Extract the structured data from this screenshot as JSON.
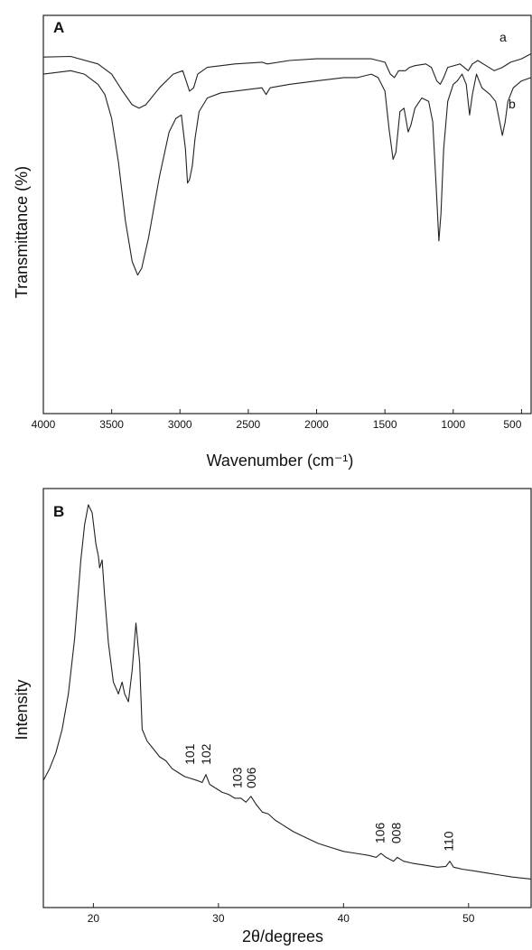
{
  "chart_data": [
    {
      "panel": "A",
      "type": "line",
      "xlabel": "Wavenumber (cm⁻¹)",
      "ylabel": "Transmittance (%)",
      "xlim": [
        4000,
        430
      ],
      "ylim": [
        0,
        100
      ],
      "x_reversed": true,
      "x_ticks": [
        4000,
        3500,
        3000,
        2500,
        2000,
        1500,
        1000,
        500
      ],
      "x_tick_labels": [
        "4000",
        "3500",
        "3000",
        "2500",
        "2000",
        "1500",
        "1000",
        "500"
      ],
      "series": [
        {
          "name": "a",
          "points": [
            [
              4000,
              93
            ],
            [
              3800,
              93.2
            ],
            [
              3600,
              91
            ],
            [
              3500,
              88
            ],
            [
              3420,
              83
            ],
            [
              3350,
              79
            ],
            [
              3300,
              78
            ],
            [
              3250,
              79
            ],
            [
              3150,
              84
            ],
            [
              3050,
              88
            ],
            [
              2980,
              89
            ],
            [
              2955,
              86
            ],
            [
              2930,
              83
            ],
            [
              2900,
              84
            ],
            [
              2870,
              88
            ],
            [
              2800,
              90
            ],
            [
              2600,
              91
            ],
            [
              2400,
              91.5
            ],
            [
              2360,
              91
            ],
            [
              2200,
              92
            ],
            [
              2000,
              92.5
            ],
            [
              1800,
              92.5
            ],
            [
              1600,
              92.5
            ],
            [
              1500,
              91.5
            ],
            [
              1460,
              88
            ],
            [
              1430,
              87
            ],
            [
              1400,
              89
            ],
            [
              1350,
              89
            ],
            [
              1320,
              90
            ],
            [
              1280,
              90.5
            ],
            [
              1200,
              91
            ],
            [
              1160,
              90
            ],
            [
              1120,
              86
            ],
            [
              1095,
              85
            ],
            [
              1070,
              87
            ],
            [
              1040,
              90
            ],
            [
              950,
              91
            ],
            [
              890,
              89
            ],
            [
              860,
              91
            ],
            [
              820,
              92
            ],
            [
              780,
              91
            ],
            [
              700,
              89
            ],
            [
              640,
              90
            ],
            [
              580,
              91.5
            ],
            [
              500,
              92.5
            ],
            [
              430,
              94
            ]
          ]
        },
        {
          "name": "b",
          "points": [
            [
              4000,
              88
            ],
            [
              3900,
              88.5
            ],
            [
              3800,
              89
            ],
            [
              3700,
              88
            ],
            [
              3600,
              85
            ],
            [
              3550,
              82
            ],
            [
              3500,
              75
            ],
            [
              3450,
              62
            ],
            [
              3400,
              45
            ],
            [
              3350,
              33
            ],
            [
              3310,
              29
            ],
            [
              3280,
              31
            ],
            [
              3230,
              40
            ],
            [
              3150,
              58
            ],
            [
              3080,
              71
            ],
            [
              3030,
              75
            ],
            [
              2990,
              76
            ],
            [
              2960,
              66
            ],
            [
              2945,
              56
            ],
            [
              2930,
              57
            ],
            [
              2910,
              61
            ],
            [
              2890,
              69
            ],
            [
              2860,
              77
            ],
            [
              2800,
              81
            ],
            [
              2700,
              82.5
            ],
            [
              2500,
              83.5
            ],
            [
              2400,
              84
            ],
            [
              2370,
              82
            ],
            [
              2340,
              84
            ],
            [
              2200,
              85
            ],
            [
              2000,
              86
            ],
            [
              1800,
              87
            ],
            [
              1700,
              87
            ],
            [
              1600,
              88
            ],
            [
              1550,
              87
            ],
            [
              1500,
              83
            ],
            [
              1470,
              72
            ],
            [
              1440,
              63
            ],
            [
              1420,
              65
            ],
            [
              1390,
              77
            ],
            [
              1360,
              78
            ],
            [
              1330,
              71
            ],
            [
              1310,
              73
            ],
            [
              1280,
              78
            ],
            [
              1230,
              81
            ],
            [
              1180,
              80
            ],
            [
              1150,
              74
            ],
            [
              1125,
              55
            ],
            [
              1105,
              39
            ],
            [
              1090,
              47
            ],
            [
              1070,
              66
            ],
            [
              1040,
              80
            ],
            [
              1000,
              85
            ],
            [
              970,
              86
            ],
            [
              935,
              88
            ],
            [
              905,
              85
            ],
            [
              880,
              76
            ],
            [
              860,
              82
            ],
            [
              830,
              88
            ],
            [
              790,
              84
            ],
            [
              730,
              82
            ],
            [
              690,
              80
            ],
            [
              660,
              74
            ],
            [
              640,
              70
            ],
            [
              620,
              74
            ],
            [
              600,
              80
            ],
            [
              560,
              84
            ],
            [
              500,
              86
            ],
            [
              430,
              87
            ]
          ]
        }
      ]
    },
    {
      "panel": "B",
      "type": "line",
      "xlabel": "2θ/degrees",
      "ylabel": "Intensity",
      "xlim": [
        16,
        55
      ],
      "ylim": [
        0,
        100
      ],
      "x_ticks": [
        20,
        30,
        40,
        50
      ],
      "x_tick_labels": [
        "20",
        "30",
        "40",
        "50"
      ],
      "series": [
        {
          "points": [
            [
              16.0,
              28
            ],
            [
              16.5,
              31
            ],
            [
              17.0,
              35
            ],
            [
              17.5,
              41
            ],
            [
              18.0,
              50
            ],
            [
              18.5,
              64
            ],
            [
              19.0,
              84
            ],
            [
              19.3,
              93
            ],
            [
              19.6,
              98
            ],
            [
              19.9,
              96
            ],
            [
              20.2,
              88
            ],
            [
              20.4,
              85
            ],
            [
              20.5,
              82
            ],
            [
              20.7,
              84
            ],
            [
              20.9,
              75
            ],
            [
              21.2,
              63
            ],
            [
              21.6,
              53
            ],
            [
              22.0,
              50
            ],
            [
              22.3,
              53
            ],
            [
              22.5,
              50
            ],
            [
              22.8,
              48
            ],
            [
              23.1,
              56
            ],
            [
              23.4,
              68
            ],
            [
              23.7,
              58
            ],
            [
              23.9,
              41
            ],
            [
              24.3,
              38
            ],
            [
              24.8,
              36
            ],
            [
              25.3,
              34
            ],
            [
              25.8,
              33
            ],
            [
              26.3,
              31
            ],
            [
              26.8,
              30
            ],
            [
              27.3,
              29
            ],
            [
              27.8,
              28.5
            ],
            [
              28.3,
              28
            ],
            [
              28.7,
              27.5
            ],
            [
              29.0,
              29.5
            ],
            [
              29.3,
              27
            ],
            [
              29.8,
              26
            ],
            [
              30.3,
              25
            ],
            [
              30.8,
              24.5
            ],
            [
              31.3,
              23.5
            ],
            [
              31.8,
              23.5
            ],
            [
              32.2,
              22.5
            ],
            [
              32.6,
              24
            ],
            [
              33.0,
              22
            ],
            [
              33.5,
              20
            ],
            [
              34.0,
              19.5
            ],
            [
              34.5,
              18
            ],
            [
              35.0,
              17
            ],
            [
              36.0,
              15
            ],
            [
              37.0,
              13.5
            ],
            [
              38.0,
              12
            ],
            [
              39.0,
              11
            ],
            [
              40.0,
              10
            ],
            [
              41.0,
              9.5
            ],
            [
              42.0,
              9
            ],
            [
              42.6,
              8.5
            ],
            [
              43.0,
              9.5
            ],
            [
              43.4,
              8.5
            ],
            [
              44.0,
              7.5
            ],
            [
              44.3,
              8.5
            ],
            [
              44.8,
              7.5
            ],
            [
              45.5,
              7
            ],
            [
              46.5,
              6.5
            ],
            [
              47.5,
              6
            ],
            [
              48.2,
              6.2
            ],
            [
              48.5,
              7.5
            ],
            [
              48.8,
              6
            ],
            [
              49.5,
              5.5
            ],
            [
              50.5,
              5
            ],
            [
              51.5,
              4.5
            ],
            [
              52.5,
              4
            ],
            [
              53.5,
              3.5
            ],
            [
              55.0,
              3
            ]
          ]
        }
      ],
      "annotations": [
        {
          "text": "101",
          "x": 27.7,
          "y": 32
        },
        {
          "text": "102",
          "x": 29.0,
          "y": 32
        },
        {
          "text": "103",
          "x": 31.5,
          "y": 26
        },
        {
          "text": "006",
          "x": 32.6,
          "y": 26
        },
        {
          "text": "106",
          "x": 42.9,
          "y": 12
        },
        {
          "text": "008",
          "x": 44.2,
          "y": 12
        },
        {
          "text": "110",
          "x": 48.4,
          "y": 10
        }
      ]
    }
  ]
}
